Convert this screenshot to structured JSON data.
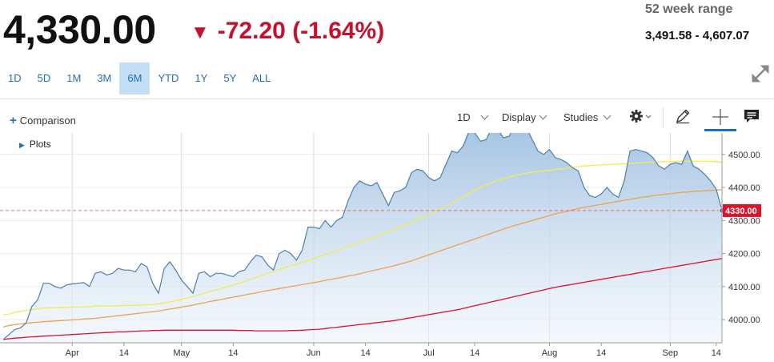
{
  "quote": {
    "price": "4,330.00",
    "change": "-72.20",
    "change_pct": "(-1.64%)",
    "direction": "down",
    "range_label": "52 week range",
    "range_value": "3,491.58 - 4,607.07"
  },
  "tabs": [
    {
      "label": "1D"
    },
    {
      "label": "5D"
    },
    {
      "label": "1M"
    },
    {
      "label": "3M"
    },
    {
      "label": "6M",
      "active": true
    },
    {
      "label": "YTD"
    },
    {
      "label": "1Y"
    },
    {
      "label": "5Y"
    },
    {
      "label": "ALL"
    }
  ],
  "toolbar": {
    "comparison_label": "Comparison",
    "interval": "1D",
    "display_label": "Display",
    "studies_label": "Studies",
    "plots_label": "Plots"
  },
  "icons": {
    "expand": "expand-icon",
    "settings": "gear-icon",
    "draw": "pencil-icon",
    "crosshair": "crosshair-icon",
    "comment": "comment-icon"
  },
  "colors": {
    "down": "#c8102e",
    "price_line": "#4b7fb0",
    "area_top": "#9ebfe0",
    "ma_yellow": "#f2ec52",
    "ma_orange": "#f0a050",
    "ma_red": "#e0122a",
    "tab_active_bg": "#c4dff5",
    "link": "#1f6fb5"
  },
  "chart_data": {
    "type": "area",
    "ylim": [
      3930,
      4560
    ],
    "y_ticks": [
      4000,
      4100,
      4200,
      4300,
      4400,
      4500
    ],
    "y_tick_labels": [
      "4000.00",
      "4100.00",
      "4200.00",
      "4300.00",
      "4400.00",
      "4500.00"
    ],
    "last_value_label": "4330.00",
    "last_value": 4330,
    "x_ticks": [
      {
        "label": "Apr",
        "index": 12,
        "major": true
      },
      {
        "label": "14",
        "index": 21
      },
      {
        "label": "May",
        "index": 31,
        "major": true
      },
      {
        "label": "14",
        "index": 40
      },
      {
        "label": "Jun",
        "index": 54,
        "major": true
      },
      {
        "label": "14",
        "index": 63
      },
      {
        "label": "Jul",
        "index": 74,
        "major": true
      },
      {
        "label": "14",
        "index": 82
      },
      {
        "label": "Aug",
        "index": 95,
        "major": true
      },
      {
        "label": "14",
        "index": 104
      },
      {
        "label": "Sep",
        "index": 116,
        "major": true
      },
      {
        "label": "14",
        "index": 124
      }
    ],
    "series": [
      {
        "key": "price",
        "values": [
          3940,
          3955,
          3970,
          3975,
          3990,
          4040,
          4060,
          4110,
          4110,
          4100,
          4095,
          4105,
          4108,
          4110,
          4112,
          4100,
          4140,
          4145,
          4135,
          4140,
          4155,
          4150,
          4150,
          4145,
          4170,
          4160,
          4110,
          4080,
          4155,
          4175,
          4150,
          4120,
          4100,
          4080,
          4140,
          4145,
          4130,
          4140,
          4140,
          4135,
          4130,
          4145,
          4150,
          4175,
          4195,
          4190,
          4165,
          4150,
          4200,
          4210,
          4200,
          4180,
          4210,
          4280,
          4280,
          4275,
          4300,
          4280,
          4300,
          4310,
          4360,
          4400,
          4420,
          4410,
          4405,
          4415,
          4380,
          4345,
          4385,
          4390,
          4400,
          4445,
          4455,
          4450,
          4430,
          4420,
          4430,
          4470,
          4510,
          4505,
          4525,
          4570,
          4565,
          4540,
          4545,
          4580,
          4575,
          4550,
          4555,
          4590,
          4590,
          4580,
          4545,
          4510,
          4500,
          4515,
          4490,
          4485,
          4475,
          4460,
          4450,
          4400,
          4375,
          4370,
          4380,
          4400,
          4380,
          4370,
          4420,
          4510,
          4515,
          4510,
          4505,
          4490,
          4465,
          4455,
          4470,
          4475,
          4470,
          4510,
          4465,
          4455,
          4440,
          4420,
          4395,
          4330
        ]
      },
      {
        "key": "ma_yellow",
        "values": [
          4015,
          4017,
          4022,
          4025,
          4028,
          4030,
          4033,
          4035,
          4036,
          4036,
          4037,
          4037,
          4038,
          4038,
          4039,
          4039,
          4041,
          4041,
          4041,
          4042,
          4042,
          4043,
          4043,
          4043,
          4044,
          4045,
          4046,
          4048,
          4051,
          4054,
          4057,
          4061,
          4066,
          4070,
          4075,
          4080,
          4085,
          4090,
          4094,
          4100,
          4105,
          4110,
          4116,
          4122,
          4128,
          4134,
          4140,
          4146,
          4152,
          4158,
          4163,
          4168,
          4173,
          4179,
          4185,
          4191,
          4197,
          4203,
          4209,
          4216,
          4222,
          4228,
          4234,
          4240,
          4247,
          4253,
          4260,
          4266,
          4272,
          4280,
          4288,
          4295,
          4303,
          4310,
          4318,
          4326,
          4335,
          4344,
          4353,
          4363,
          4372,
          4382,
          4391,
          4400,
          4408,
          4415,
          4421,
          4427,
          4432,
          4436,
          4440,
          4443,
          4446,
          4448,
          4450,
          4452,
          4454,
          4456,
          4458,
          4461,
          4463,
          4465,
          4466,
          4467,
          4468,
          4469,
          4470,
          4471,
          4472,
          4473,
          4474,
          4475,
          4476,
          4477,
          4477,
          4478,
          4478,
          4479,
          4479,
          4479,
          4479,
          4479,
          4479,
          4479,
          4478,
          4476
        ]
      },
      {
        "key": "ma_orange",
        "values": [
          3978,
          3982,
          3985,
          3987,
          3989,
          3991,
          3992,
          3994,
          3995,
          3996,
          3997,
          3998,
          3999,
          4000,
          4002,
          4003,
          4004,
          4006,
          4008,
          4010,
          4012,
          4014,
          4016,
          4018,
          4020,
          4022,
          4024,
          4026,
          4029,
          4032,
          4035,
          4038,
          4041,
          4044,
          4048,
          4051,
          4055,
          4058,
          4061,
          4065,
          4068,
          4071,
          4075,
          4078,
          4081,
          4085,
          4088,
          4091,
          4094,
          4097,
          4100,
          4103,
          4106,
          4109,
          4112,
          4115,
          4119,
          4122,
          4125,
          4128,
          4132,
          4135,
          4139,
          4143,
          4147,
          4151,
          4155,
          4159,
          4163,
          4168,
          4173,
          4178,
          4184,
          4190,
          4196,
          4202,
          4208,
          4214,
          4220,
          4226,
          4232,
          4238,
          4244,
          4250,
          4256,
          4262,
          4268,
          4274,
          4280,
          4285,
          4290,
          4295,
          4300,
          4305,
          4310,
          4315,
          4320,
          4324,
          4328,
          4332,
          4336,
          4340,
          4343,
          4346,
          4349,
          4352,
          4355,
          4358,
          4361,
          4364,
          4367,
          4370,
          4372,
          4375,
          4377,
          4379,
          4381,
          4383,
          4385,
          4386,
          4388,
          4389,
          4390,
          4391,
          4392,
          4393
        ]
      },
      {
        "key": "ma_red",
        "values": [
          3940,
          3942,
          3944,
          3945,
          3947,
          3948,
          3949,
          3950,
          3951,
          3952,
          3953,
          3954,
          3955,
          3956,
          3957,
          3958,
          3959,
          3960,
          3961,
          3962,
          3963,
          3963,
          3964,
          3965,
          3966,
          3966,
          3967,
          3967,
          3968,
          3968,
          3968,
          3968,
          3968,
          3968,
          3968,
          3968,
          3968,
          3968,
          3968,
          3968,
          3968,
          3967,
          3967,
          3967,
          3966,
          3966,
          3966,
          3966,
          3966,
          3966,
          3967,
          3967,
          3968,
          3969,
          3970,
          3971,
          3973,
          3975,
          3977,
          3979,
          3981,
          3983,
          3985,
          3987,
          3989,
          3991,
          3993,
          3995,
          3997,
          4000,
          4003,
          4006,
          4009,
          4012,
          4015,
          4018,
          4021,
          4024,
          4027,
          4030,
          4034,
          4038,
          4042,
          4046,
          4050,
          4054,
          4058,
          4062,
          4066,
          4070,
          4074,
          4078,
          4082,
          4086,
          4090,
          4094,
          4098,
          4101,
          4104,
          4107,
          4110,
          4113,
          4116,
          4119,
          4122,
          4125,
          4128,
          4131,
          4134,
          4137,
          4140,
          4143,
          4146,
          4149,
          4152,
          4155,
          4158,
          4161,
          4164,
          4167,
          4170,
          4173,
          4176,
          4179,
          4182,
          4185
        ]
      }
    ]
  }
}
